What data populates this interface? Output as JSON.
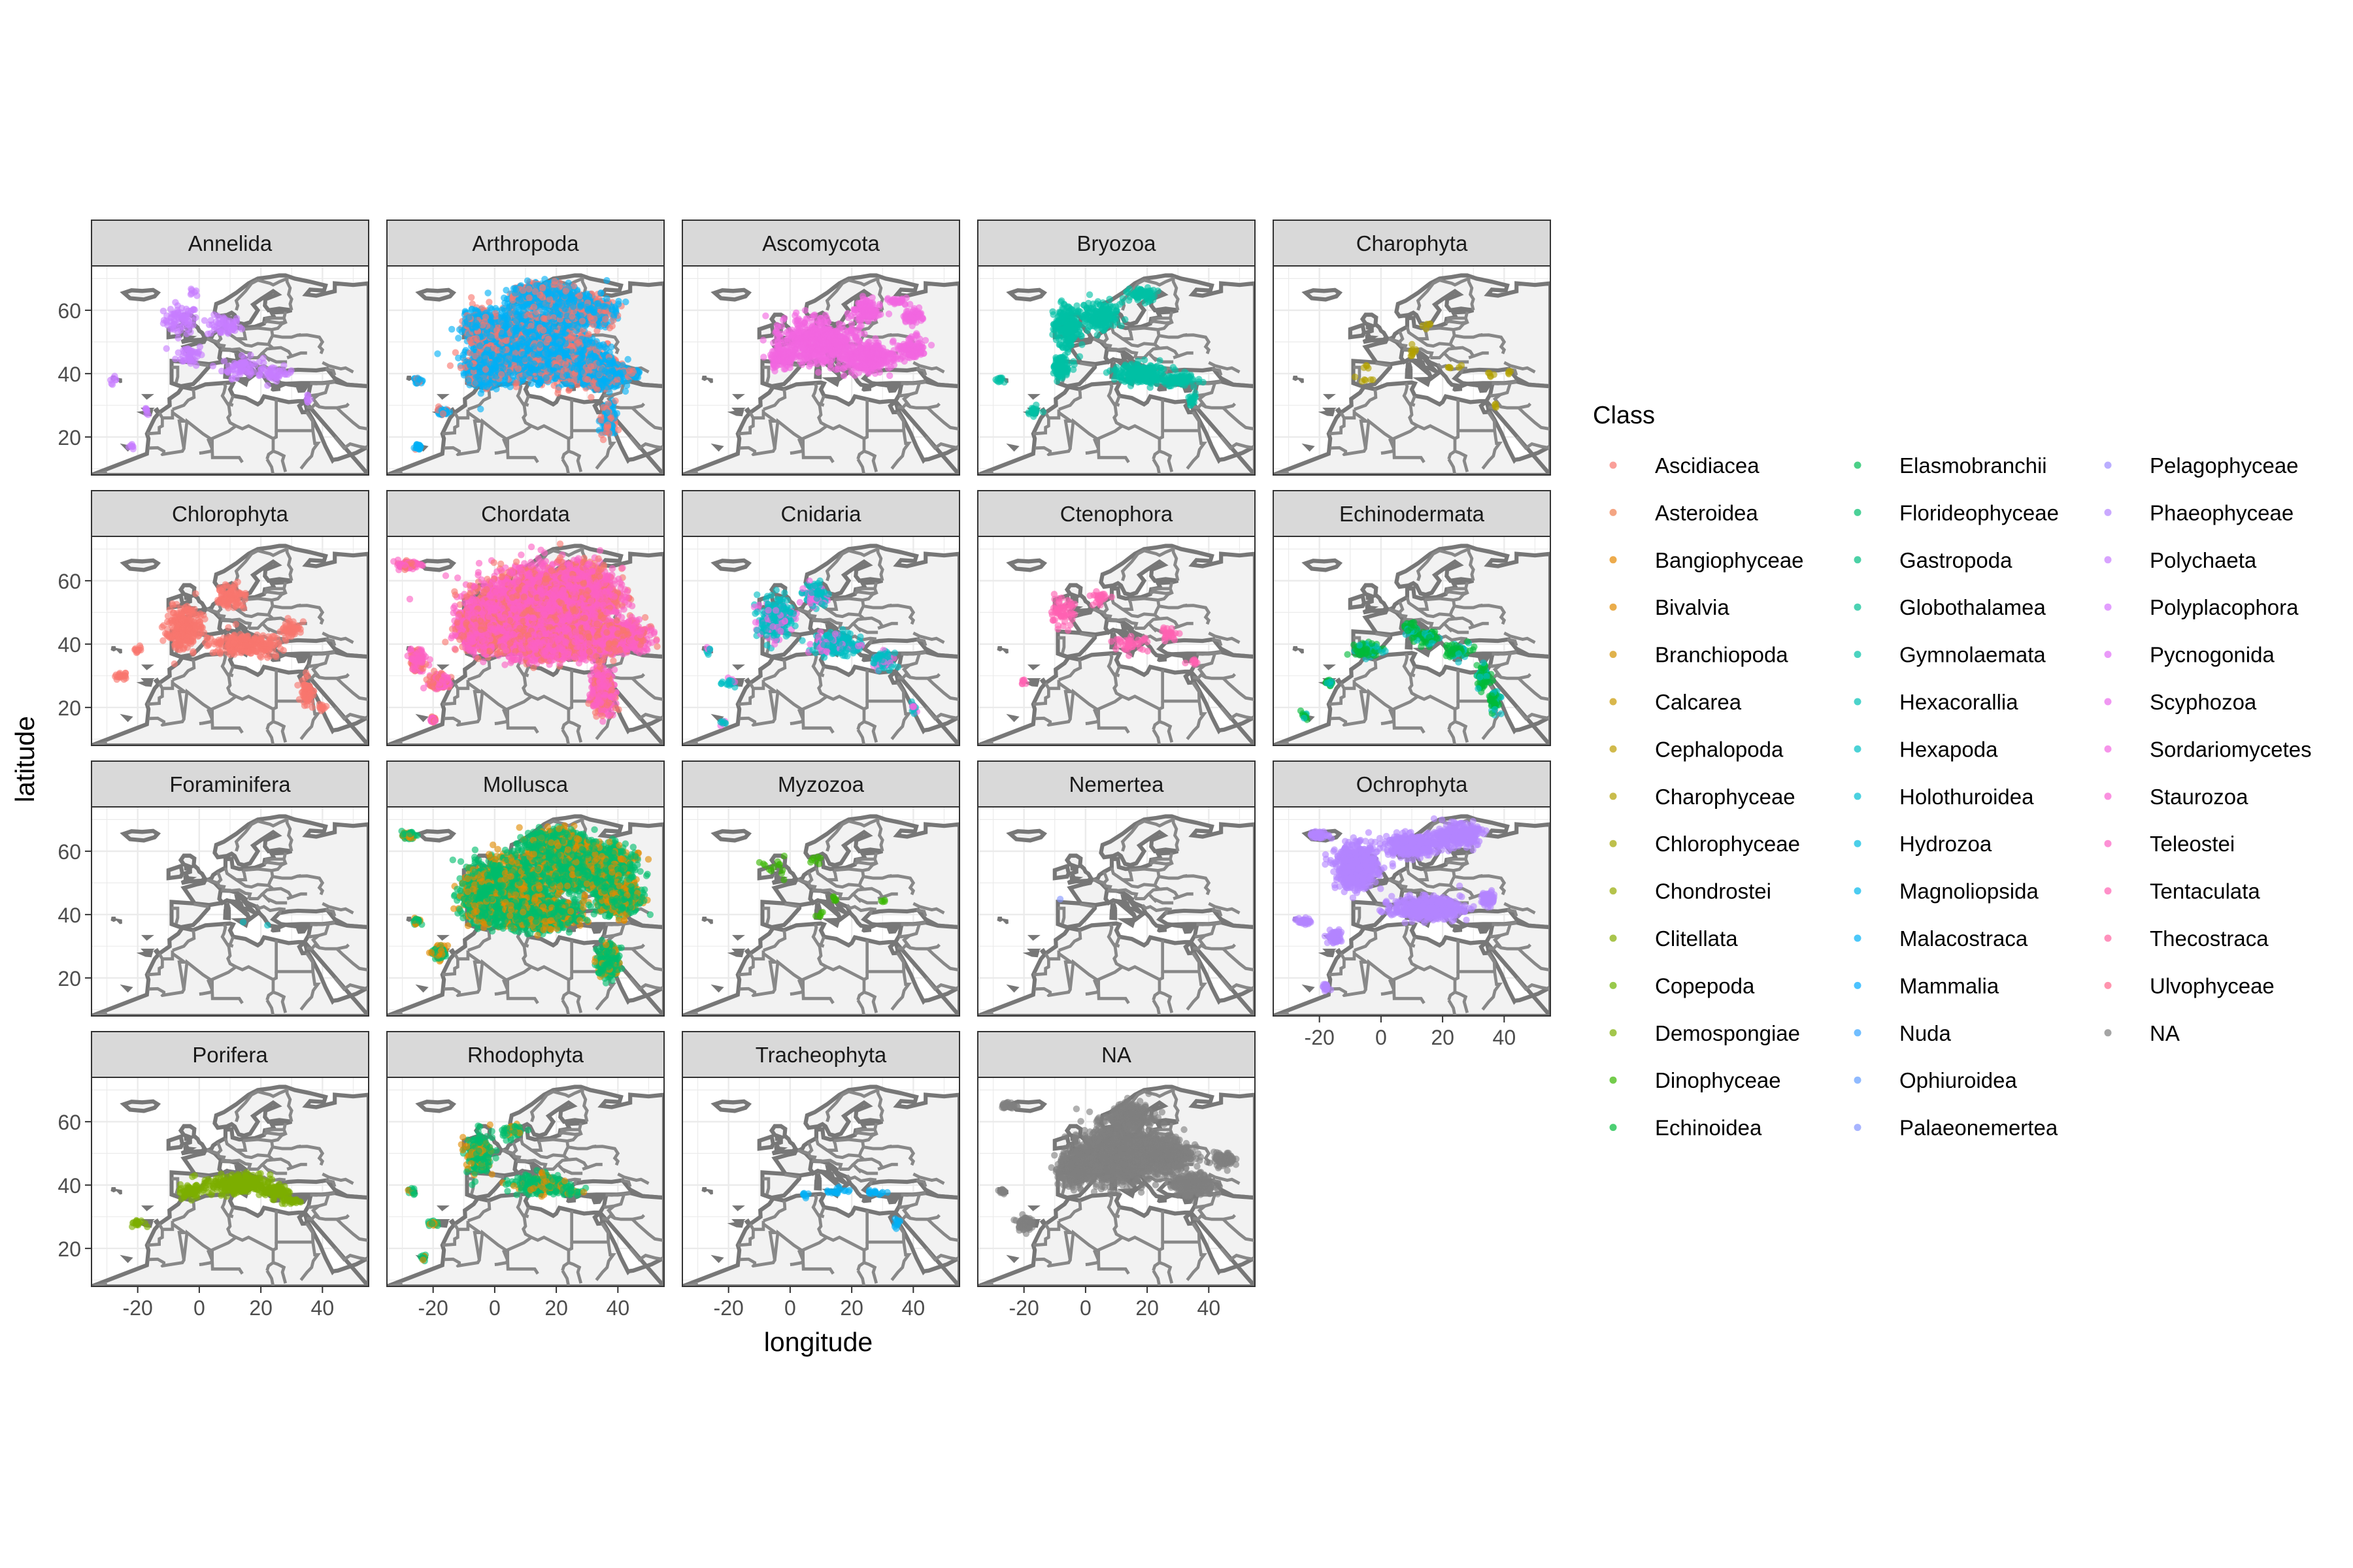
{
  "chart_data": {
    "type": "scatter",
    "facet_by": "Phylum",
    "color_by": "Class",
    "xlabel": "longitude",
    "ylabel": "latitude",
    "xlim": [
      -35,
      55
    ],
    "ylim": [
      8,
      74
    ],
    "x_ticks": [
      -20,
      0,
      20,
      40
    ],
    "y_ticks": [
      20,
      40,
      60
    ],
    "x_tick_labels": [
      "-20",
      "0",
      "20",
      "40"
    ],
    "y_tick_labels": [
      "20",
      "40",
      "60"
    ],
    "grid": true,
    "legend": {
      "title": "Class",
      "placement": "right",
      "columns": 3,
      "entries": [
        {
          "label": "Ascidiacea",
          "color": "#F8766D"
        },
        {
          "label": "Asteroidea",
          "color": "#F07F4E"
        },
        {
          "label": "Bangiophyceae",
          "color": "#E58700"
        },
        {
          "label": "Bivalvia",
          "color": "#E18A00"
        },
        {
          "label": "Branchiopoda",
          "color": "#D39200"
        },
        {
          "label": "Calcarea",
          "color": "#C99800"
        },
        {
          "label": "Cephalopoda",
          "color": "#BE9C00"
        },
        {
          "label": "Charophyceae",
          "color": "#B2A000"
        },
        {
          "label": "Chlorophyceae",
          "color": "#A3A500"
        },
        {
          "label": "Chondrostei",
          "color": "#96A900"
        },
        {
          "label": "Clitellata",
          "color": "#85AD00"
        },
        {
          "label": "Copepoda",
          "color": "#6EB200"
        },
        {
          "label": "Demospongiae",
          "color": "#7CAE00"
        },
        {
          "label": "Dinophyceae",
          "color": "#39B600"
        },
        {
          "label": "Echinoidea",
          "color": "#00BA38"
        },
        {
          "label": "Elasmobranchii",
          "color": "#00BC56"
        },
        {
          "label": "Florideophyceae",
          "color": "#00BD6C"
        },
        {
          "label": "Gastropoda",
          "color": "#00BE80"
        },
        {
          "label": "Globothalamea",
          "color": "#00BF93"
        },
        {
          "label": "Gymnolaemata",
          "color": "#00C0A5"
        },
        {
          "label": "Hexacorallia",
          "color": "#00C0B5"
        },
        {
          "label": "Hexapoda",
          "color": "#00BFC4"
        },
        {
          "label": "Holothuroidea",
          "color": "#00BDD3"
        },
        {
          "label": "Hydrozoa",
          "color": "#00BAE0"
        },
        {
          "label": "Magnoliopsida",
          "color": "#00B6EB"
        },
        {
          "label": "Malacostraca",
          "color": "#00B0F6"
        },
        {
          "label": "Mammalia",
          "color": "#00A9FF"
        },
        {
          "label": "Nuda",
          "color": "#35A2FF"
        },
        {
          "label": "Ophiuroidea",
          "color": "#619CFF"
        },
        {
          "label": "Palaeonemertea",
          "color": "#8294FF"
        },
        {
          "label": "Pelagophyceae",
          "color": "#9D8CFF"
        },
        {
          "label": "Phaeophyceae",
          "color": "#B385FF"
        },
        {
          "label": "Polychaeta",
          "color": "#C77CFF"
        },
        {
          "label": "Polyplacophora",
          "color": "#D575FE"
        },
        {
          "label": "Pycnogonida",
          "color": "#E16FF6"
        },
        {
          "label": "Scyphozoa",
          "color": "#EA6BEC"
        },
        {
          "label": "Sordariomycetes",
          "color": "#F266E1"
        },
        {
          "label": "Staurozoa",
          "color": "#F863D3"
        },
        {
          "label": "Teleostei",
          "color": "#FC61C3"
        },
        {
          "label": "Tentaculata",
          "color": "#FF61B2"
        },
        {
          "label": "Thecostraca",
          "color": "#FF63A0"
        },
        {
          "label": "Ulvophyceae",
          "color": "#FF678B"
        },
        {
          "label": "NA",
          "color": "#7F7F7F"
        }
      ]
    },
    "facets": [
      {
        "label": "Annelida",
        "color": "#C77CFF",
        "density": "low",
        "clusters": [
          [
            -6,
            57,
            5,
            4
          ],
          [
            8,
            55,
            5,
            3
          ],
          [
            -3,
            46,
            4,
            3
          ],
          [
            14,
            42,
            6,
            3
          ],
          [
            25,
            40,
            5,
            2
          ],
          [
            -28,
            38,
            1,
            1
          ],
          [
            -17,
            28,
            1,
            1
          ],
          [
            -22,
            17,
            1,
            1
          ],
          [
            35,
            32,
            1,
            1
          ],
          [
            -2,
            66,
            1,
            1
          ]
        ]
      },
      {
        "label": "Arthropoda",
        "color": "#00B0F6",
        "secondary_color": "#F8766D",
        "density": "very high",
        "clusters": [
          [
            8,
            50,
            12,
            8
          ],
          [
            20,
            45,
            12,
            6
          ],
          [
            -3,
            42,
            5,
            5
          ],
          [
            35,
            40,
            6,
            4
          ],
          [
            28,
            60,
            8,
            4
          ],
          [
            15,
            65,
            8,
            3
          ],
          [
            -25,
            38,
            1,
            1
          ],
          [
            -17,
            28,
            2,
            1
          ],
          [
            -25,
            17,
            1,
            1
          ],
          [
            37,
            25,
            2,
            4
          ],
          [
            45,
            40,
            2,
            1
          ],
          [
            -5,
            55,
            4,
            4
          ]
        ]
      },
      {
        "label": "Ascomycota",
        "color": "#F266E1",
        "density": "medium",
        "clusters": [
          [
            10,
            50,
            12,
            6
          ],
          [
            25,
            45,
            8,
            4
          ],
          [
            40,
            48,
            4,
            3
          ],
          [
            -3,
            45,
            4,
            3
          ],
          [
            25,
            60,
            4,
            3
          ],
          [
            40,
            58,
            3,
            2
          ],
          [
            35,
            63,
            3,
            1
          ]
        ]
      },
      {
        "label": "Bryozoa",
        "color": "#00C0A5",
        "density": "medium",
        "clusters": [
          [
            -6,
            55,
            4,
            6
          ],
          [
            5,
            58,
            5,
            4
          ],
          [
            18,
            40,
            8,
            3
          ],
          [
            30,
            38,
            5,
            2
          ],
          [
            -8,
            42,
            3,
            3
          ],
          [
            -17,
            28,
            2,
            1
          ],
          [
            -28,
            38,
            1,
            1
          ],
          [
            18,
            65,
            4,
            2
          ],
          [
            35,
            32,
            1,
            2
          ]
        ]
      },
      {
        "label": "Charophyta",
        "color": "#B2A000",
        "density": "sparse",
        "clusters": [
          [
            -5,
            38,
            3,
            1
          ],
          [
            10,
            47,
            3,
            2
          ],
          [
            25,
            42,
            3,
            1
          ],
          [
            35,
            40,
            2,
            1
          ],
          [
            42,
            40,
            1,
            1
          ],
          [
            37,
            30,
            1,
            1
          ],
          [
            15,
            55,
            2,
            1
          ],
          [
            -5,
            42,
            1,
            1
          ]
        ]
      },
      {
        "label": "Chlorophyta",
        "color": "#F8766D",
        "density": "medium",
        "clusters": [
          [
            -5,
            45,
            5,
            6
          ],
          [
            15,
            40,
            10,
            3
          ],
          [
            10,
            55,
            4,
            3
          ],
          [
            -20,
            38,
            1,
            1
          ],
          [
            35,
            25,
            2,
            4
          ],
          [
            -25,
            30,
            2,
            1
          ],
          [
            30,
            45,
            3,
            2
          ],
          [
            40,
            20,
            1,
            1
          ]
        ]
      },
      {
        "label": "Chordata",
        "color": "#FC61C3",
        "secondary_color": "#F8766D",
        "density": "very high",
        "clusters": [
          [
            12,
            50,
            15,
            10
          ],
          [
            -5,
            45,
            6,
            6
          ],
          [
            25,
            55,
            12,
            8
          ],
          [
            20,
            40,
            12,
            4
          ],
          [
            40,
            42,
            8,
            4
          ],
          [
            -25,
            35,
            2,
            3
          ],
          [
            -18,
            28,
            3,
            2
          ],
          [
            35,
            25,
            3,
            6
          ],
          [
            -28,
            65,
            3,
            1
          ],
          [
            -20,
            16,
            1,
            1
          ]
        ]
      },
      {
        "label": "Cnidaria",
        "color": "#00BFC4",
        "secondary_color": "#F266E1",
        "density": "medium",
        "clusters": [
          [
            -5,
            48,
            5,
            6
          ],
          [
            15,
            40,
            8,
            3
          ],
          [
            8,
            56,
            4,
            3
          ],
          [
            -20,
            28,
            2,
            1
          ],
          [
            30,
            35,
            3,
            3
          ],
          [
            -27,
            38,
            1,
            1
          ],
          [
            -22,
            15,
            1,
            1
          ],
          [
            40,
            20,
            1,
            2
          ]
        ]
      },
      {
        "label": "Ctenophora",
        "color": "#FF61B2",
        "density": "low",
        "clusters": [
          [
            -8,
            50,
            4,
            4
          ],
          [
            5,
            55,
            3,
            2
          ],
          [
            15,
            40,
            5,
            2
          ],
          [
            27,
            43,
            3,
            2
          ],
          [
            35,
            35,
            2,
            1
          ],
          [
            -20,
            28,
            1,
            1
          ]
        ]
      },
      {
        "label": "Echinodermata",
        "color": "#00BA38",
        "secondary_color": "#00BFC4",
        "density": "medium",
        "clusters": [
          [
            15,
            42,
            4,
            2
          ],
          [
            25,
            38,
            4,
            2
          ],
          [
            33,
            30,
            2,
            4
          ],
          [
            37,
            22,
            2,
            3
          ],
          [
            -5,
            38,
            4,
            2
          ],
          [
            -25,
            17,
            1,
            1
          ],
          [
            -17,
            28,
            1,
            1
          ],
          [
            10,
            45,
            2,
            2
          ]
        ]
      },
      {
        "label": "Foraminifera",
        "color": "#00BFC4",
        "density": "very sparse",
        "clusters": [
          [
            15,
            38,
            2,
            1
          ],
          [
            22,
            36,
            2,
            1
          ]
        ]
      },
      {
        "label": "Mollusca",
        "color": "#00BD6C",
        "secondary_color": "#E18A00",
        "density": "very high",
        "clusters": [
          [
            5,
            48,
            10,
            8
          ],
          [
            -3,
            45,
            6,
            6
          ],
          [
            15,
            40,
            10,
            4
          ],
          [
            30,
            55,
            12,
            6
          ],
          [
            40,
            45,
            6,
            4
          ],
          [
            20,
            62,
            8,
            4
          ],
          [
            -25,
            38,
            1,
            1
          ],
          [
            -18,
            28,
            2,
            2
          ],
          [
            37,
            25,
            3,
            4
          ],
          [
            -28,
            65,
            2,
            1
          ]
        ]
      },
      {
        "label": "Myzozoa",
        "color": "#39B600",
        "density": "sparse",
        "clusters": [
          [
            -5,
            55,
            3,
            3
          ],
          [
            8,
            57,
            2,
            2
          ],
          [
            15,
            45,
            2,
            1
          ],
          [
            30,
            45,
            1,
            1
          ],
          [
            10,
            40,
            2,
            1
          ]
        ]
      },
      {
        "label": "Nemertea",
        "color": "#8294FF",
        "density": "very sparse",
        "clusters": [
          [
            -8,
            44,
            1,
            1
          ]
        ]
      },
      {
        "label": "Ochrophyta",
        "color": "#B385FF",
        "density": "high",
        "clusters": [
          [
            -8,
            55,
            6,
            6
          ],
          [
            10,
            62,
            8,
            3
          ],
          [
            25,
            65,
            6,
            3
          ],
          [
            15,
            42,
            10,
            3
          ],
          [
            -25,
            38,
            2,
            1
          ],
          [
            -20,
            65,
            3,
            1
          ],
          [
            -15,
            33,
            2,
            2
          ],
          [
            35,
            45,
            2,
            2
          ],
          [
            -18,
            17,
            1,
            1
          ]
        ]
      },
      {
        "label": "Porifera",
        "color": "#7CAE00",
        "density": "medium",
        "clusters": [
          [
            12,
            40,
            10,
            3
          ],
          [
            25,
            38,
            4,
            2
          ],
          [
            -3,
            38,
            3,
            2
          ],
          [
            -20,
            28,
            2,
            1
          ],
          [
            30,
            35,
            3,
            1
          ]
        ]
      },
      {
        "label": "Rhodophyta",
        "color": "#00BD6C",
        "secondary_color": "#E18A00",
        "density": "medium",
        "clusters": [
          [
            -5,
            50,
            4,
            6
          ],
          [
            5,
            57,
            3,
            2
          ],
          [
            15,
            40,
            8,
            3
          ],
          [
            -20,
            28,
            2,
            1
          ],
          [
            -27,
            38,
            1,
            1
          ],
          [
            -23,
            17,
            1,
            1
          ],
          [
            25,
            38,
            3,
            1
          ]
        ]
      },
      {
        "label": "Tracheophyta",
        "color": "#00B0F6",
        "density": "low",
        "clusters": [
          [
            15,
            38,
            4,
            1
          ],
          [
            28,
            38,
            3,
            1
          ],
          [
            35,
            28,
            1,
            2
          ],
          [
            5,
            37,
            1,
            1
          ]
        ]
      },
      {
        "label": "NA",
        "color": "#7F7F7F",
        "density": "high",
        "clusters": [
          [
            10,
            50,
            10,
            8
          ],
          [
            -3,
            45,
            5,
            5
          ],
          [
            25,
            50,
            8,
            5
          ],
          [
            35,
            40,
            6,
            3
          ],
          [
            -20,
            28,
            2,
            2
          ],
          [
            -27,
            38,
            1,
            1
          ],
          [
            -25,
            65,
            2,
            1
          ],
          [
            45,
            48,
            3,
            2
          ],
          [
            15,
            62,
            6,
            3
          ]
        ]
      }
    ]
  }
}
